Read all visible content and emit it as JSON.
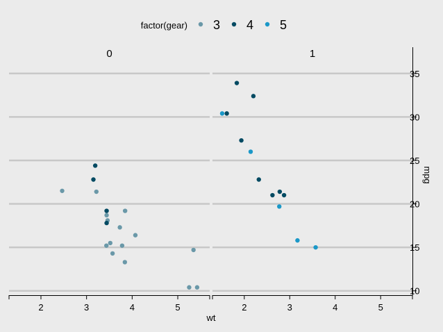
{
  "chart_data": {
    "type": "scatter",
    "xlabel": "wt",
    "ylabel": "mpg",
    "xlim": [
      1.3,
      5.7
    ],
    "ylim": [
      9.5,
      36.5
    ],
    "x_ticks": [
      2,
      3,
      4,
      5
    ],
    "y_ticks": [
      10,
      15,
      20,
      25,
      30,
      35
    ],
    "grid": "horizontal",
    "legend": {
      "title": "factor(gear)",
      "position": "top"
    },
    "facets": [
      "0",
      "1"
    ],
    "series": [
      {
        "name": "3",
        "color": "#6a98a8",
        "points": [
          {
            "facet": "0",
            "x": 2.465,
            "y": 21.5
          },
          {
            "facet": "0",
            "x": 3.215,
            "y": 21.4
          },
          {
            "facet": "0",
            "x": 3.44,
            "y": 18.7
          },
          {
            "facet": "0",
            "x": 3.46,
            "y": 18.1
          },
          {
            "facet": "0",
            "x": 3.57,
            "y": 14.3
          },
          {
            "facet": "0",
            "x": 4.07,
            "y": 16.4
          },
          {
            "facet": "0",
            "x": 3.73,
            "y": 17.3
          },
          {
            "facet": "0",
            "x": 3.78,
            "y": 15.2
          },
          {
            "facet": "0",
            "x": 5.25,
            "y": 10.4
          },
          {
            "facet": "0",
            "x": 5.424,
            "y": 10.4
          },
          {
            "facet": "0",
            "x": 5.345,
            "y": 14.7
          },
          {
            "facet": "0",
            "x": 3.52,
            "y": 15.5
          },
          {
            "facet": "0",
            "x": 3.435,
            "y": 15.2
          },
          {
            "facet": "0",
            "x": 3.84,
            "y": 13.3
          },
          {
            "facet": "0",
            "x": 3.845,
            "y": 19.2
          }
        ]
      },
      {
        "name": "4",
        "color": "#034a62",
        "points": [
          {
            "facet": "0",
            "x": 3.19,
            "y": 24.4
          },
          {
            "facet": "0",
            "x": 3.15,
            "y": 22.8
          },
          {
            "facet": "0",
            "x": 3.44,
            "y": 19.2
          },
          {
            "facet": "0",
            "x": 3.44,
            "y": 17.8
          },
          {
            "facet": "1",
            "x": 2.62,
            "y": 21.0
          },
          {
            "facet": "1",
            "x": 2.875,
            "y": 21.0
          },
          {
            "facet": "1",
            "x": 2.32,
            "y": 22.8
          },
          {
            "facet": "1",
            "x": 2.2,
            "y": 32.4
          },
          {
            "facet": "1",
            "x": 1.615,
            "y": 30.4
          },
          {
            "facet": "1",
            "x": 1.835,
            "y": 33.9
          },
          {
            "facet": "1",
            "x": 1.935,
            "y": 27.3
          },
          {
            "facet": "1",
            "x": 2.78,
            "y": 21.4
          }
        ]
      },
      {
        "name": "5",
        "color": "#1b98c8",
        "points": [
          {
            "facet": "1",
            "x": 2.14,
            "y": 26.0
          },
          {
            "facet": "1",
            "x": 1.513,
            "y": 30.4
          },
          {
            "facet": "1",
            "x": 3.17,
            "y": 15.8
          },
          {
            "facet": "1",
            "x": 2.77,
            "y": 19.7
          },
          {
            "facet": "1",
            "x": 3.57,
            "y": 15.0
          }
        ]
      }
    ]
  }
}
